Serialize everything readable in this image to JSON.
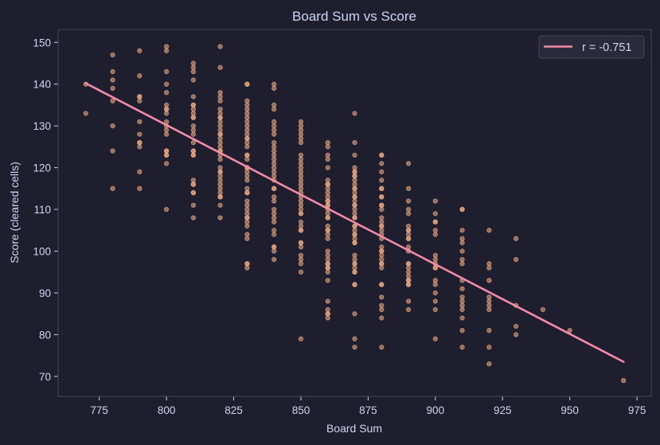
{
  "chart_data": {
    "type": "scatter",
    "title": "Board Sum vs Score",
    "xlabel": "Board Sum",
    "ylabel": "Score (cleared cells)",
    "xlim": [
      759.7,
      980.3
    ],
    "ylim": [
      65.2,
      153.1
    ],
    "xticks": [
      775,
      800,
      825,
      850,
      875,
      900,
      925,
      950,
      975
    ],
    "yticks": [
      70,
      80,
      90,
      100,
      110,
      120,
      130,
      140,
      150
    ],
    "grid": false,
    "legend": {
      "placement": "top-right",
      "entries": [
        "r = -0.751"
      ]
    },
    "regression": {
      "label": "r = -0.751",
      "r": -0.751,
      "x": [
        770,
        970
      ],
      "y": [
        140.2,
        73.5
      ]
    },
    "colors": {
      "background": "#1e1e2e",
      "points": "#fab387",
      "line": "#f38ba8",
      "text": "#cdd6f4",
      "frame": "#45475a"
    },
    "series": [
      {
        "x": 770,
        "y": [
          140,
          133
        ]
      },
      {
        "x": 780,
        "y": [
          147,
          143,
          141,
          139,
          136,
          130,
          124,
          115
        ]
      },
      {
        "x": 790,
        "y": [
          148,
          142,
          137,
          137,
          136,
          131,
          128,
          126,
          126,
          125,
          119,
          115
        ]
      },
      {
        "x": 800,
        "y": [
          149,
          148,
          143,
          140,
          138,
          135,
          134,
          134,
          133,
          131,
          130,
          129,
          128,
          124,
          124,
          123,
          123,
          121,
          110
        ]
      },
      {
        "x": 810,
        "y": [
          145,
          144,
          143,
          141,
          137,
          135,
          135,
          134,
          133,
          132,
          132,
          130,
          129,
          128,
          126,
          124,
          124,
          123,
          123,
          117,
          116,
          116,
          114,
          114,
          111,
          108
        ]
      },
      {
        "x": 820,
        "y": [
          149,
          144,
          138,
          137,
          136,
          134,
          133,
          132,
          132,
          131,
          130,
          129,
          128,
          128,
          127,
          126,
          125,
          124,
          124,
          123,
          122,
          120,
          119,
          119,
          118,
          117,
          116,
          115,
          114,
          113,
          113,
          111,
          108
        ]
      },
      {
        "x": 830,
        "y": [
          140,
          140,
          136,
          135,
          134,
          133,
          132,
          131,
          130,
          129,
          128,
          127,
          127,
          126,
          125,
          123,
          123,
          122,
          120,
          120,
          119,
          118,
          117,
          115,
          114,
          114,
          112,
          111,
          110,
          109,
          108,
          108,
          107,
          106,
          104,
          103,
          97,
          97,
          96
        ]
      },
      {
        "x": 840,
        "y": [
          140,
          139,
          135,
          134,
          131,
          130,
          129,
          128,
          126,
          125,
          124,
          123,
          122,
          121,
          120,
          119,
          118,
          117,
          115,
          115,
          113,
          112,
          110,
          109,
          108,
          107,
          105,
          104,
          101,
          101,
          100,
          98
        ]
      },
      {
        "x": 850,
        "y": [
          131,
          130,
          129,
          128,
          127,
          126,
          123,
          122,
          121,
          120,
          119,
          118,
          117,
          116,
          115,
          114,
          113,
          112,
          111,
          110,
          109,
          109,
          107,
          106,
          105,
          105,
          102,
          102,
          101,
          99,
          98,
          97,
          95,
          79
        ]
      },
      {
        "x": 860,
        "y": [
          126,
          125,
          123,
          122,
          120,
          117,
          116,
          116,
          115,
          114,
          113,
          112,
          112,
          111,
          111,
          110,
          109,
          108,
          108,
          106,
          105,
          105,
          104,
          103,
          100,
          99,
          98,
          97,
          97,
          96,
          96,
          95,
          93,
          88,
          86,
          85,
          85,
          84
        ]
      },
      {
        "x": 870,
        "y": [
          133,
          126,
          123,
          120,
          119,
          119,
          118,
          118,
          117,
          116,
          115,
          115,
          114,
          113,
          113,
          112,
          111,
          111,
          110,
          109,
          108,
          108,
          106,
          106,
          105,
          104,
          104,
          103,
          102,
          102,
          99,
          98,
          97,
          97,
          96,
          95,
          95,
          92,
          92,
          85,
          79,
          77
        ]
      },
      {
        "x": 880,
        "y": [
          123,
          123,
          121,
          119,
          117,
          115,
          115,
          113,
          113,
          111,
          111,
          110,
          108,
          107,
          106,
          106,
          105,
          104,
          103,
          101,
          100,
          100,
          99,
          98,
          97,
          97,
          96,
          92,
          92,
          89,
          87,
          86,
          84,
          77
        ]
      },
      {
        "x": 890,
        "y": [
          121,
          115,
          112,
          110,
          109,
          106,
          105,
          105,
          104,
          103,
          103,
          101,
          100,
          97,
          97,
          96,
          95,
          94,
          93,
          93,
          92,
          92,
          88,
          86
        ]
      },
      {
        "x": 900,
        "y": [
          112,
          109,
          107,
          107,
          105,
          104,
          99,
          98,
          97,
          96,
          96,
          93,
          92,
          90,
          88,
          86,
          79
        ]
      },
      {
        "x": 910,
        "y": [
          110,
          110,
          105,
          103,
          102,
          100,
          98,
          97,
          93,
          91,
          89,
          88,
          87,
          86,
          84,
          81,
          77
        ]
      },
      {
        "x": 920,
        "y": [
          105,
          97,
          96,
          93,
          89,
          88,
          87,
          86,
          81,
          77,
          73
        ]
      },
      {
        "x": 930,
        "y": [
          103,
          98,
          87,
          82,
          80
        ]
      },
      {
        "x": 940,
        "y": [
          86
        ]
      },
      {
        "x": 950,
        "y": [
          81
        ]
      },
      {
        "x": 970,
        "y": [
          69
        ]
      }
    ]
  }
}
